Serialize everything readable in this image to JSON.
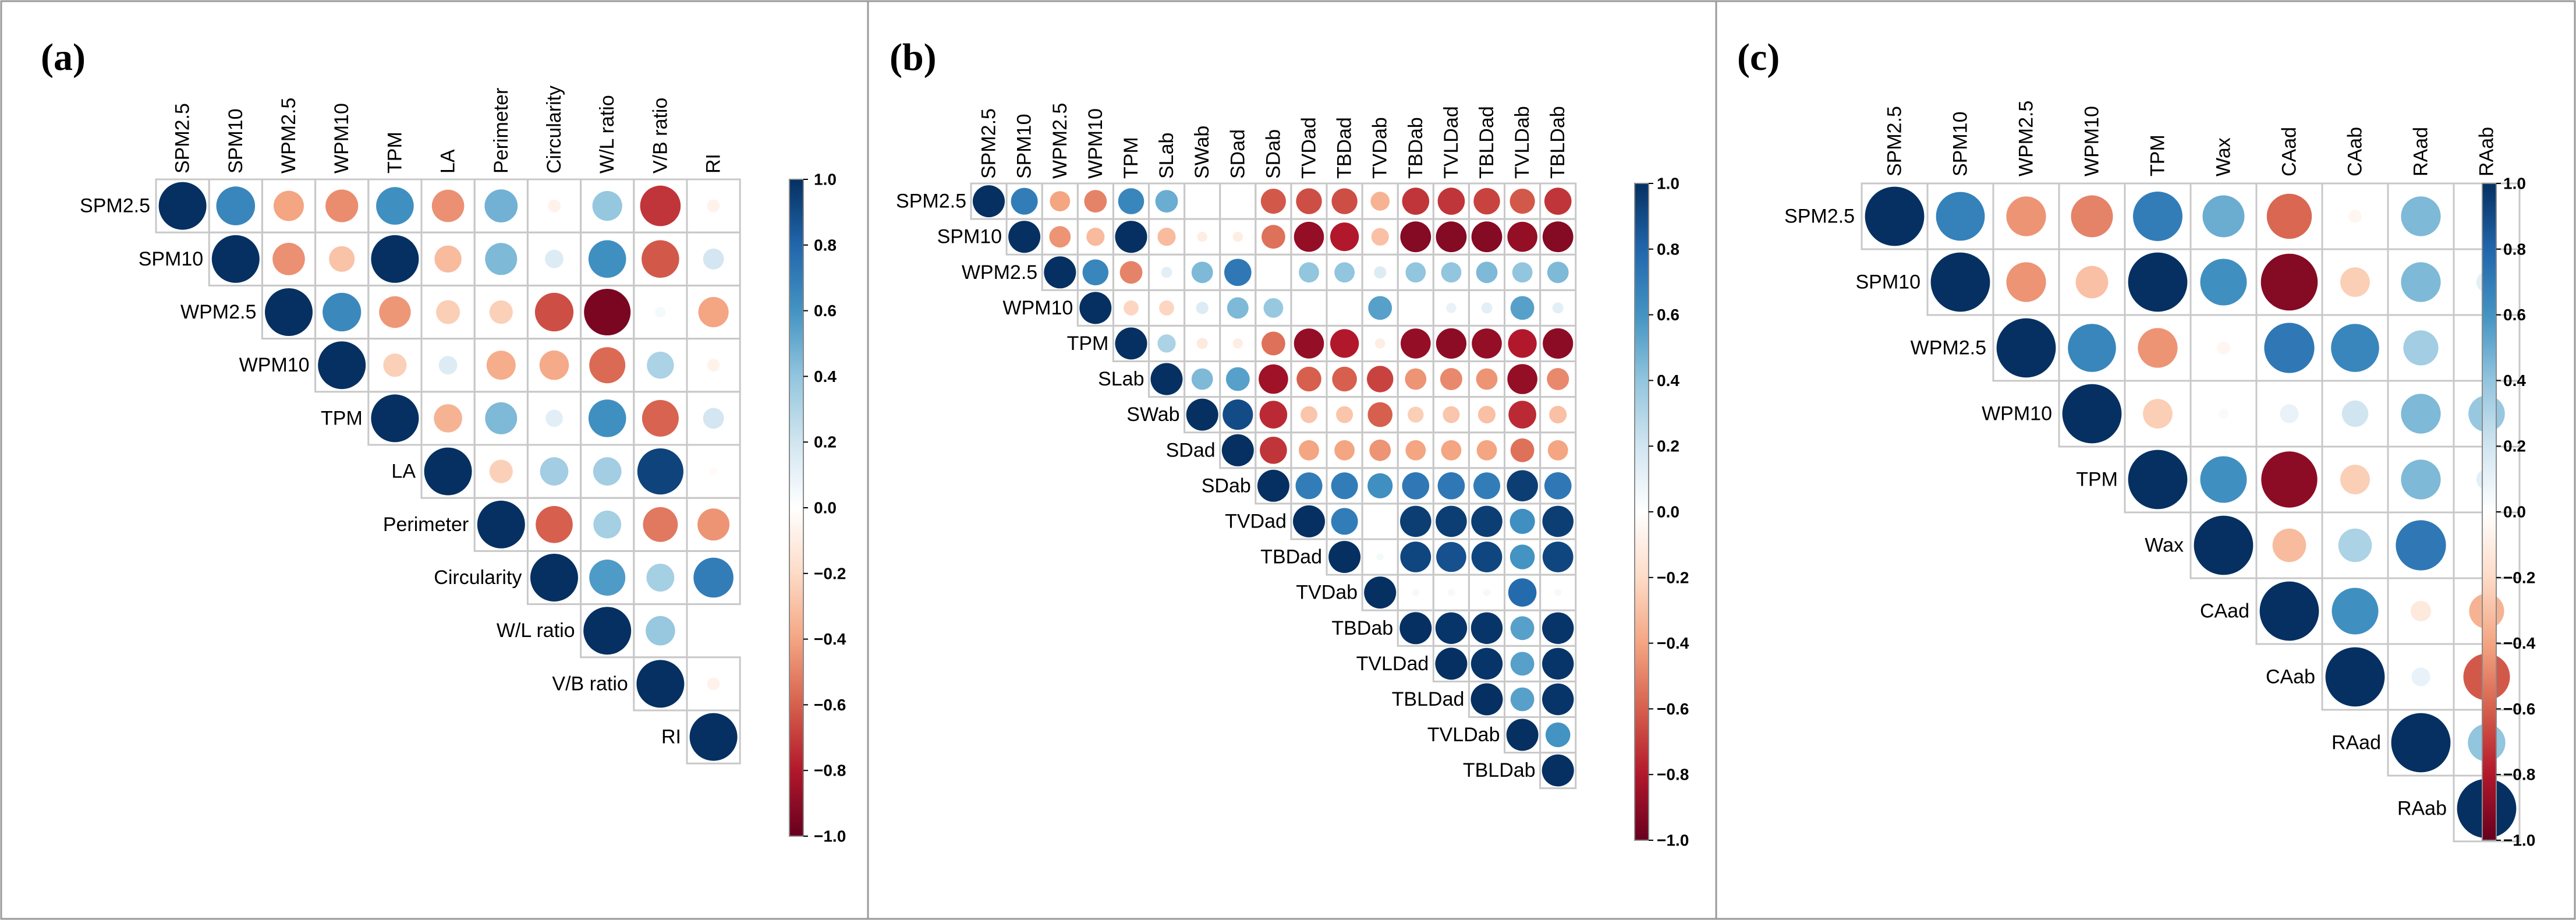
{
  "figure": {
    "panel_labels": [
      "(a)",
      "(b)",
      "(c)"
    ]
  },
  "colors": {
    "scale_negative_end": "#67001f",
    "scale_neutral": "#ffffff",
    "scale_positive_end": "#053061",
    "grid": "#c8c8c8",
    "frame": "#9a9a9a"
  },
  "chart_data": [
    {
      "type": "heatmap",
      "subtype": "correlation matrix (upper triangle, circle glyphs)",
      "panel_label": "(a)",
      "variables": [
        "SPM2.5",
        "SPM10",
        "WPM2.5",
        "WPM10",
        "TPM",
        "LA",
        "Perimeter",
        "Circularity",
        "W/L ratio",
        "V/B ratio",
        "RI"
      ],
      "upper_triangle_rows": [
        [
          1.0,
          0.66,
          -0.4,
          -0.47,
          0.62,
          -0.46,
          0.48,
          -0.07,
          0.39,
          -0.72,
          -0.07
        ],
        [
          1.0,
          -0.46,
          -0.29,
          1.0,
          -0.32,
          0.45,
          0.15,
          0.62,
          -0.62,
          0.19
        ],
        [
          1.0,
          0.65,
          -0.44,
          -0.25,
          -0.24,
          -0.65,
          -0.95,
          0.05,
          -0.4
        ],
        [
          1.0,
          -0.24,
          0.15,
          -0.37,
          -0.38,
          -0.57,
          0.32,
          -0.07
        ],
        [
          1.0,
          -0.35,
          0.45,
          0.13,
          0.62,
          -0.59,
          0.19
        ],
        [
          1.0,
          -0.24,
          0.35,
          0.35,
          0.93,
          -0.03
        ],
        [
          1.0,
          -0.6,
          0.34,
          -0.53,
          -0.45
        ],
        [
          1.0,
          0.57,
          0.34,
          0.7
        ],
        [
          1.0,
          0.38
        ],
        [
          1.0,
          -0.07
        ],
        [
          1.0
        ]
      ],
      "colorbar": {
        "min": -1.0,
        "max": 1.0,
        "ticks": [
          "1.0",
          "0.8",
          "0.6",
          "0.4",
          "0.2",
          "0.0",
          "−0.2",
          "−0.4",
          "−0.6",
          "−0.8",
          "−1.0"
        ]
      }
    },
    {
      "type": "heatmap",
      "subtype": "correlation matrix (upper triangle, circle glyphs)",
      "panel_label": "(b)",
      "variables": [
        "SPM2.5",
        "SPM10",
        "WPM2.5",
        "WPM10",
        "TPM",
        "SLab",
        "SWab",
        "SDad",
        "SDab",
        "TVDad",
        "TBDad",
        "TVDab",
        "TBDab",
        "TVLDad",
        "TBLDad",
        "TVLDab",
        "TBLDab"
      ],
      "upper_triangle_rows": [
        [
          1.0,
          0.7,
          -0.4,
          -0.5,
          0.66,
          0.5,
          0.0,
          0.0,
          -0.62,
          -0.65,
          -0.65,
          -0.35,
          -0.72,
          -0.72,
          -0.68,
          -0.62,
          -0.72
        ],
        [
          1.0,
          -0.45,
          -0.32,
          1.0,
          -0.32,
          -0.1,
          -0.1,
          -0.55,
          -0.88,
          -0.8,
          -0.3,
          -0.92,
          -0.92,
          -0.92,
          -0.88,
          -0.92
        ],
        [
          1.0,
          0.66,
          -0.5,
          0.12,
          0.45,
          0.72,
          0.0,
          0.4,
          0.4,
          0.15,
          0.4,
          0.4,
          0.45,
          0.4,
          0.45
        ],
        [
          1.0,
          -0.22,
          -0.22,
          0.15,
          0.45,
          0.38,
          0.0,
          0.0,
          0.55,
          0.0,
          0.1,
          0.12,
          0.55,
          0.12
        ],
        [
          1.0,
          0.32,
          -0.12,
          -0.1,
          -0.55,
          -0.88,
          -0.8,
          -0.1,
          -0.88,
          -0.9,
          -0.88,
          -0.8,
          -0.9
        ],
        [
          1.0,
          0.45,
          0.55,
          -0.85,
          -0.6,
          -0.6,
          -0.68,
          -0.45,
          -0.48,
          -0.45,
          -0.88,
          -0.48
        ],
        [
          1.0,
          0.9,
          -0.75,
          -0.28,
          -0.28,
          -0.6,
          -0.25,
          -0.28,
          -0.3,
          -0.75,
          -0.3
        ],
        [
          1.0,
          -0.72,
          -0.4,
          -0.4,
          -0.45,
          -0.4,
          -0.4,
          -0.4,
          -0.55,
          -0.4
        ],
        [
          1.0,
          0.7,
          0.7,
          0.62,
          0.72,
          0.72,
          0.7,
          0.95,
          0.72
        ],
        [
          1.0,
          0.7,
          0.0,
          0.95,
          0.95,
          0.95,
          0.62,
          0.95
        ],
        [
          1.0,
          0.05,
          0.92,
          0.88,
          0.92,
          0.6,
          0.92
        ],
        [
          1.0,
          0.05,
          0.05,
          0.05,
          0.78,
          0.05
        ],
        [
          1.0,
          0.98,
          0.98,
          0.55,
          0.98
        ],
        [
          1.0,
          0.98,
          0.55,
          0.98
        ],
        [
          1.0,
          0.55,
          0.98
        ],
        [
          1.0,
          0.6
        ],
        [
          1.0
        ]
      ],
      "colorbar": {
        "min": -1.0,
        "max": 1.0,
        "ticks": [
          "1.0",
          "0.8",
          "0.6",
          "0.4",
          "0.2",
          "0.0",
          "−0.2",
          "−0.4",
          "−0.6",
          "−0.8",
          "−1.0"
        ]
      }
    },
    {
      "type": "heatmap",
      "subtype": "correlation matrix (upper triangle, circle glyphs)",
      "panel_label": "(c)",
      "variables": [
        "SPM2.5",
        "SPM10",
        "WPM2.5",
        "WPM10",
        "TPM",
        "Wax",
        "CAad",
        "CAab",
        "RAad",
        "RAab"
      ],
      "upper_triangle_rows": [
        [
          1.0,
          0.68,
          -0.45,
          -0.5,
          0.7,
          0.5,
          -0.58,
          -0.05,
          0.45,
          0.0
        ],
        [
          1.0,
          -0.45,
          -0.3,
          1.0,
          0.62,
          -0.92,
          -0.25,
          0.45,
          0.12
        ],
        [
          1.0,
          0.66,
          -0.45,
          -0.05,
          0.72,
          0.66,
          0.35,
          0.0
        ],
        [
          1.0,
          -0.25,
          0.03,
          0.1,
          0.2,
          0.45,
          0.38
        ],
        [
          1.0,
          0.62,
          -0.9,
          -0.25,
          0.45,
          0.12
        ],
        [
          1.0,
          -0.32,
          0.32,
          0.72,
          0.0
        ],
        [
          1.0,
          0.62,
          -0.12,
          -0.35
        ],
        [
          1.0,
          0.1,
          -0.62
        ],
        [
          1.0,
          0.4
        ],
        [
          1.0
        ]
      ],
      "colorbar": {
        "min": -1.0,
        "max": 1.0,
        "ticks": [
          "1.0",
          "0.8",
          "0.6",
          "0.4",
          "0.2",
          "0.0",
          "−0.2",
          "−0.4",
          "−0.6",
          "−0.8",
          "−1.0"
        ]
      }
    }
  ]
}
